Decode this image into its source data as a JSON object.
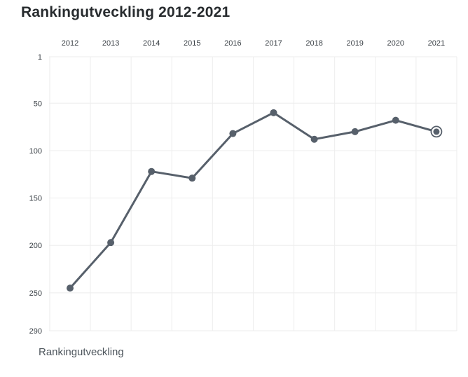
{
  "chart_data": {
    "type": "line",
    "title": "Rankingutveckling 2012-2021",
    "x": [
      "2012",
      "2013",
      "2014",
      "2015",
      "2016",
      "2017",
      "2018",
      "2019",
      "2020",
      "2021"
    ],
    "series": [
      {
        "name": "Rankingutveckling",
        "values": [
          245,
          197,
          122,
          129,
          82,
          60,
          88,
          80,
          68,
          80
        ],
        "color": "#57606b"
      }
    ],
    "y_ticks": [
      1,
      50,
      100,
      150,
      200,
      250,
      290
    ],
    "ylim": [
      1,
      290
    ],
    "y_inverted": true,
    "x_axis_position": "top",
    "grid": true,
    "legend_position": "bottom-left",
    "highlight_last_point": true
  }
}
